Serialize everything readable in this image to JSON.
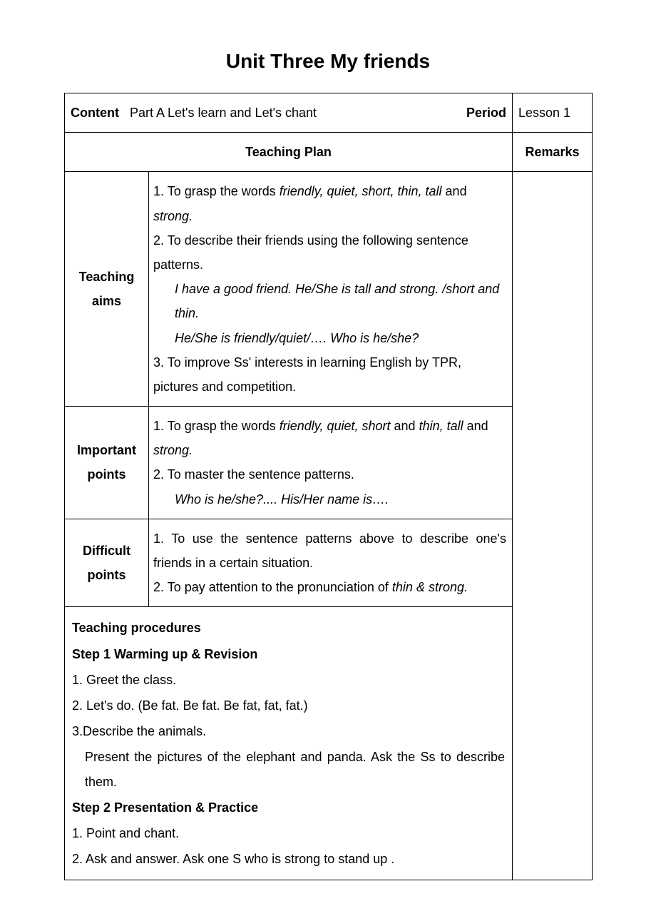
{
  "title": "Unit Three   My friends",
  "header": {
    "content_label": "Content",
    "content_value": "Part A   Let's learn and Let's chant",
    "period_label": "Period",
    "period_value": "Lesson 1"
  },
  "plan_header": "Teaching   Plan",
  "remarks_header": "Remarks",
  "teaching_aims": {
    "label": "Teaching aims",
    "item1_a": "1. To grasp the words ",
    "item1_b": "friendly, quiet, short, thin, tall",
    "item1_c": " and ",
    "item1_d": "strong.",
    "item2": "2. To describe their friends using the following sentence patterns.",
    "item2_ex1": "I have a good friend.    He/She is tall and strong. /short and thin.",
    "item2_ex2": "He/She is friendly/quiet/….     Who is he/she?",
    "item3": "3. To improve Ss' interests in learning English by TPR, pictures and competition."
  },
  "important_points": {
    "label": "Important points",
    "item1_a": "1. To grasp the words ",
    "item1_b": "friendly, quiet, short",
    "item1_c": " and ",
    "item1_d": "thin, tall",
    "item1_e": " and ",
    "item1_f": "strong.",
    "item2": "2. To master the sentence patterns.",
    "item2_ex": "Who is he/she?....   His/Her name is…."
  },
  "difficult_points": {
    "label": "Difficult points",
    "item1": "1. To use the sentence patterns above to describe one's friends in a certain situation.",
    "item2_a": "2. To pay attention to the pronunciation of ",
    "item2_b": "thin & strong."
  },
  "procedures": {
    "heading": "Teaching procedures",
    "step1": "Step 1   Warming up & Revision",
    "s1_1": "1. Greet the class.",
    "s1_2": "2. Let's do. (Be fat. Be fat. Be fat, fat, fat.)",
    "s1_3": "3.Describe the animals.",
    "s1_3b": "Present the pictures of the elephant and panda. Ask the Ss to describe them.",
    "step2": "Step 2   Presentation & Practice",
    "s2_1": "1. Point and chant.",
    "s2_2": "2. Ask and answer.    Ask one S who is strong to stand up ."
  }
}
